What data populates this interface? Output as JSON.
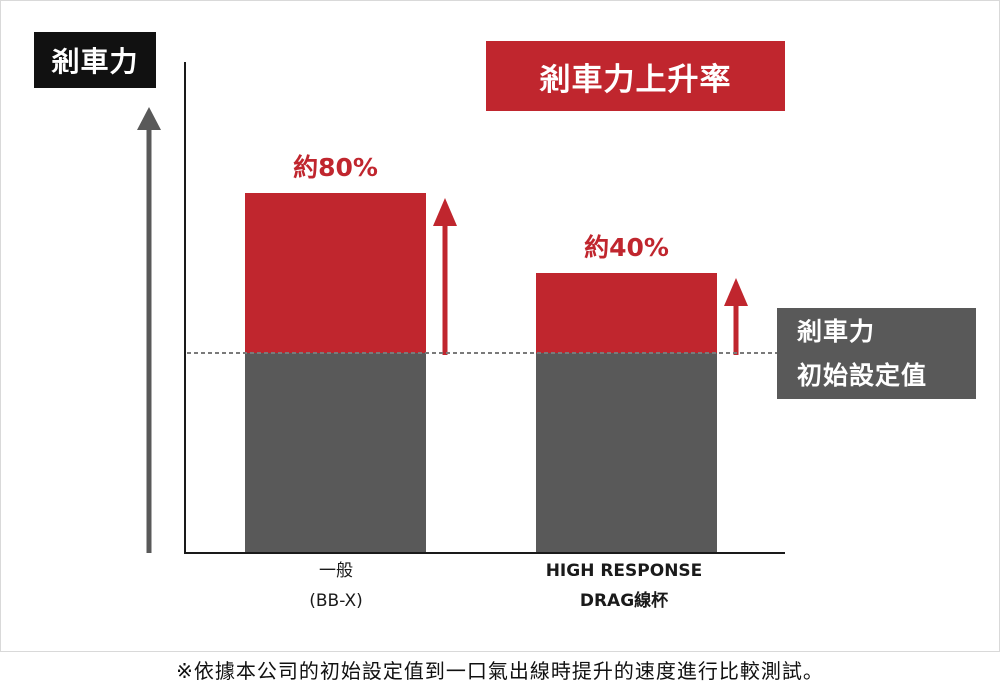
{
  "chart_data": {
    "type": "bar",
    "title": "剎車力上升率",
    "ylabel": "剎車力",
    "reference": {
      "label_line1": "剎車力",
      "label_line2": "初始設定值",
      "value": 100
    },
    "ylim": [
      0,
      200
    ],
    "categories": [
      {
        "line1": "一般",
        "line2": "(BB-X)"
      },
      {
        "line1": "HIGH RESPONSE",
        "line2": "DRAG線杯"
      }
    ],
    "series": [
      {
        "values": [
          100,
          100
        ]
      },
      {
        "values": [
          80,
          40
        ]
      }
    ],
    "increase_percent": [
      80,
      40
    ],
    "data_labels": [
      "約80%",
      "約40%"
    ],
    "grid": false,
    "colors": {
      "base": "#595959",
      "increase": "#c0262e",
      "axis": "#1a1a1a",
      "arrow_left": "#595959",
      "arrow_up": "#c0262e",
      "ref_line": "#7a7a7a"
    }
  },
  "footnote": "※依據本公司的初始設定值到一口氣出線時提升的速度進行比較測試。"
}
